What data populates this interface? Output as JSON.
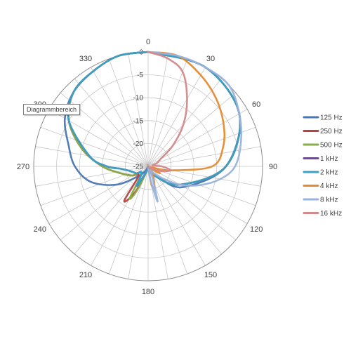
{
  "tooltip": {
    "label": "Diagrammbereich"
  },
  "chart_data": {
    "type": "polar-line",
    "radial_axis": {
      "min": -25,
      "max": 0,
      "step": 5,
      "ticks": [
        "0",
        "-5",
        "-10",
        "-15",
        "-20",
        "-25"
      ]
    },
    "angle_labels": [
      {
        "angle": 0,
        "label": "0"
      },
      {
        "angle": 30,
        "label": "30"
      },
      {
        "angle": 60,
        "label": "60"
      },
      {
        "angle": 90,
        "label": "90"
      },
      {
        "angle": 120,
        "label": "120"
      },
      {
        "angle": 150,
        "label": "150"
      },
      {
        "angle": 180,
        "label": "180"
      },
      {
        "angle": 210,
        "label": "210"
      },
      {
        "angle": 240,
        "label": "240"
      },
      {
        "angle": 270,
        "label": "270"
      },
      {
        "angle": 300,
        "label": "300"
      },
      {
        "angle": 330,
        "label": "330"
      }
    ],
    "angular_gridline_step": 10,
    "legend_position": "right",
    "series": [
      {
        "name": "125 Hz",
        "color": "#4a76b3",
        "points": [
          [
            0,
            0
          ],
          [
            30,
            0
          ],
          [
            60,
            -2
          ],
          [
            90,
            -8
          ],
          [
            120,
            -16
          ],
          [
            135,
            -21
          ],
          [
            150,
            -24
          ],
          [
            165,
            -25
          ],
          [
            180,
            -25
          ],
          [
            195,
            -25
          ],
          [
            210,
            -24
          ],
          [
            225,
            -22
          ],
          [
            240,
            -17
          ],
          [
            255,
            -12
          ],
          [
            270,
            -9
          ],
          [
            285,
            -7
          ],
          [
            300,
            -4
          ],
          [
            315,
            -2
          ],
          [
            330,
            -1
          ],
          [
            345,
            0
          ],
          [
            360,
            0
          ]
        ]
      },
      {
        "name": "250 Hz",
        "color": "#b5433f",
        "points": [
          [
            0,
            0
          ],
          [
            30,
            0
          ],
          [
            60,
            -2
          ],
          [
            90,
            -8
          ],
          [
            120,
            -17
          ],
          [
            150,
            -23
          ],
          [
            180,
            -25
          ],
          [
            195,
            -24
          ],
          [
            205,
            -20
          ],
          [
            210,
            -17
          ],
          [
            215,
            -16
          ],
          [
            225,
            -22
          ],
          [
            240,
            -21
          ],
          [
            255,
            -19
          ],
          [
            270,
            -15
          ],
          [
            285,
            -10
          ],
          [
            300,
            -5
          ],
          [
            315,
            -2
          ],
          [
            330,
            -1
          ],
          [
            345,
            0
          ],
          [
            360,
            0
          ]
        ]
      },
      {
        "name": "500 Hz",
        "color": "#89ad4b",
        "points": [
          [
            0,
            0
          ],
          [
            30,
            0
          ],
          [
            60,
            -2
          ],
          [
            90,
            -8
          ],
          [
            120,
            -17
          ],
          [
            150,
            -23
          ],
          [
            180,
            -25
          ],
          [
            195,
            -24
          ],
          [
            205,
            -19
          ],
          [
            210,
            -17
          ],
          [
            225,
            -23
          ],
          [
            240,
            -21
          ],
          [
            255,
            -19
          ],
          [
            270,
            -15
          ],
          [
            285,
            -10
          ],
          [
            300,
            -5
          ],
          [
            315,
            -2
          ],
          [
            330,
            -1
          ],
          [
            345,
            0
          ],
          [
            360,
            0
          ]
        ]
      },
      {
        "name": "1 kHz",
        "color": "#6b4c93",
        "points": [
          [
            0,
            0
          ],
          [
            30,
            0
          ],
          [
            60,
            -2
          ],
          [
            90,
            -8
          ],
          [
            120,
            -17
          ],
          [
            150,
            -23
          ],
          [
            180,
            -25
          ],
          [
            195,
            -24
          ],
          [
            210,
            -20
          ],
          [
            225,
            -23
          ],
          [
            240,
            -22
          ],
          [
            255,
            -21
          ],
          [
            265,
            -19
          ],
          [
            270,
            -16
          ],
          [
            280,
            -12
          ],
          [
            300,
            -5
          ],
          [
            315,
            -2
          ],
          [
            330,
            -1
          ],
          [
            345,
            0
          ],
          [
            360,
            0
          ]
        ]
      },
      {
        "name": "2 kHz",
        "color": "#3aa2c4",
        "points": [
          [
            0,
            0
          ],
          [
            30,
            0
          ],
          [
            60,
            -2
          ],
          [
            90,
            -8
          ],
          [
            120,
            -17
          ],
          [
            150,
            -23
          ],
          [
            180,
            -25
          ],
          [
            195,
            -24
          ],
          [
            210,
            -20
          ],
          [
            225,
            -23
          ],
          [
            240,
            -22
          ],
          [
            255,
            -21
          ],
          [
            265,
            -19
          ],
          [
            270,
            -16
          ],
          [
            280,
            -12
          ],
          [
            300,
            -5
          ],
          [
            315,
            -2
          ],
          [
            330,
            -1
          ],
          [
            345,
            0
          ],
          [
            360,
            0
          ]
        ]
      },
      {
        "name": "4 kHz",
        "color": "#e58a2e",
        "points": [
          [
            0,
            0
          ],
          [
            15,
            0
          ],
          [
            30,
            -2
          ],
          [
            45,
            -4
          ],
          [
            60,
            -6
          ],
          [
            75,
            -8
          ],
          [
            90,
            -11
          ],
          [
            100,
            -20
          ],
          [
            105,
            -24
          ],
          [
            110,
            -24
          ],
          [
            120,
            -22
          ],
          [
            130,
            -24
          ],
          [
            140,
            -24
          ],
          [
            150,
            -23
          ],
          [
            160,
            -21
          ],
          [
            165,
            -20
          ],
          [
            170,
            -21
          ],
          [
            180,
            -25
          ],
          [
            270,
            -25
          ],
          [
            360,
            -25
          ]
        ]
      },
      {
        "name": "8 kHz",
        "color": "#98b3db",
        "points": [
          [
            0,
            0
          ],
          [
            15,
            0
          ],
          [
            30,
            0
          ],
          [
            45,
            0
          ],
          [
            60,
            -2
          ],
          [
            75,
            -4
          ],
          [
            90,
            -6
          ],
          [
            100,
            -9
          ],
          [
            110,
            -13
          ],
          [
            120,
            -17
          ],
          [
            130,
            -21
          ],
          [
            140,
            -23
          ],
          [
            150,
            -24
          ],
          [
            160,
            -22
          ],
          [
            165,
            -17
          ],
          [
            170,
            -22
          ],
          [
            180,
            -25
          ],
          [
            270,
            -25
          ],
          [
            360,
            -25
          ]
        ]
      },
      {
        "name": "16 kHz",
        "color": "#d4898b",
        "points": [
          [
            0,
            0
          ],
          [
            10,
            -1
          ],
          [
            20,
            -3
          ],
          [
            30,
            -8
          ],
          [
            40,
            -13
          ],
          [
            50,
            -18
          ],
          [
            60,
            -22
          ],
          [
            70,
            -23
          ],
          [
            80,
            -24
          ],
          [
            90,
            -22
          ],
          [
            100,
            -20
          ],
          [
            110,
            -22
          ],
          [
            120,
            -24
          ],
          [
            135,
            -25
          ],
          [
            180,
            -25
          ],
          [
            270,
            -25
          ],
          [
            360,
            -25
          ]
        ]
      }
    ]
  }
}
